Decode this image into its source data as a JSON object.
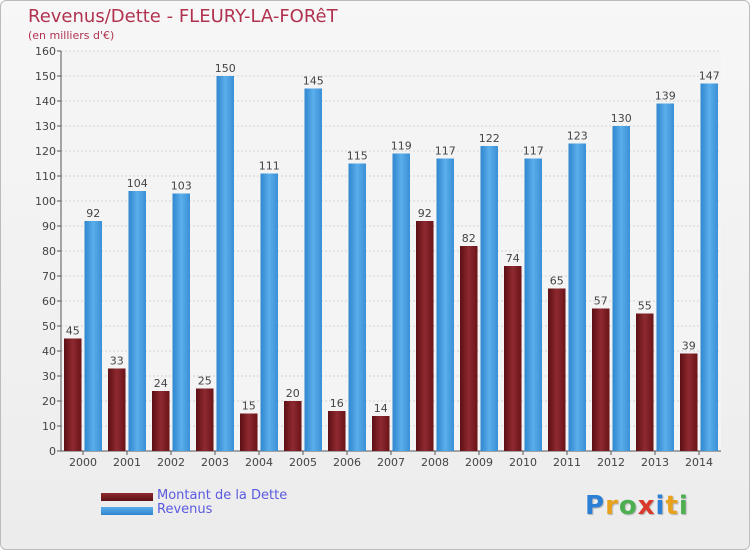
{
  "chart_data": {
    "type": "bar",
    "title": "Revenus/Dette - FLEURY-LA-FORêT",
    "subtitle": "(en milliers d'€)",
    "categories": [
      "2000",
      "2001",
      "2002",
      "2003",
      "2004",
      "2005",
      "2006",
      "2007",
      "2008",
      "2009",
      "2010",
      "2011",
      "2012",
      "2013",
      "2014"
    ],
    "series": [
      {
        "name": "Montant de la Dette",
        "color": "#7a1a1f",
        "values": [
          45,
          33,
          24,
          25,
          15,
          20,
          16,
          14,
          92,
          82,
          74,
          65,
          57,
          55,
          39
        ]
      },
      {
        "name": "Revenus",
        "color": "#4a9fe0",
        "values": [
          92,
          104,
          103,
          150,
          111,
          145,
          115,
          119,
          117,
          122,
          117,
          123,
          130,
          139,
          147
        ]
      }
    ],
    "ylim": [
      0,
      160
    ],
    "ytick_step": 10,
    "grid": true,
    "legend_position": "bottom-left"
  },
  "logo": {
    "letters": [
      "P",
      "r",
      "o",
      "x",
      "i",
      "t",
      "i"
    ],
    "colors": [
      "#2b7fd4",
      "#e8a11c",
      "#4caf50",
      "#d93a2b",
      "#2b7fd4",
      "#e8a11c",
      "#4caf50"
    ]
  }
}
